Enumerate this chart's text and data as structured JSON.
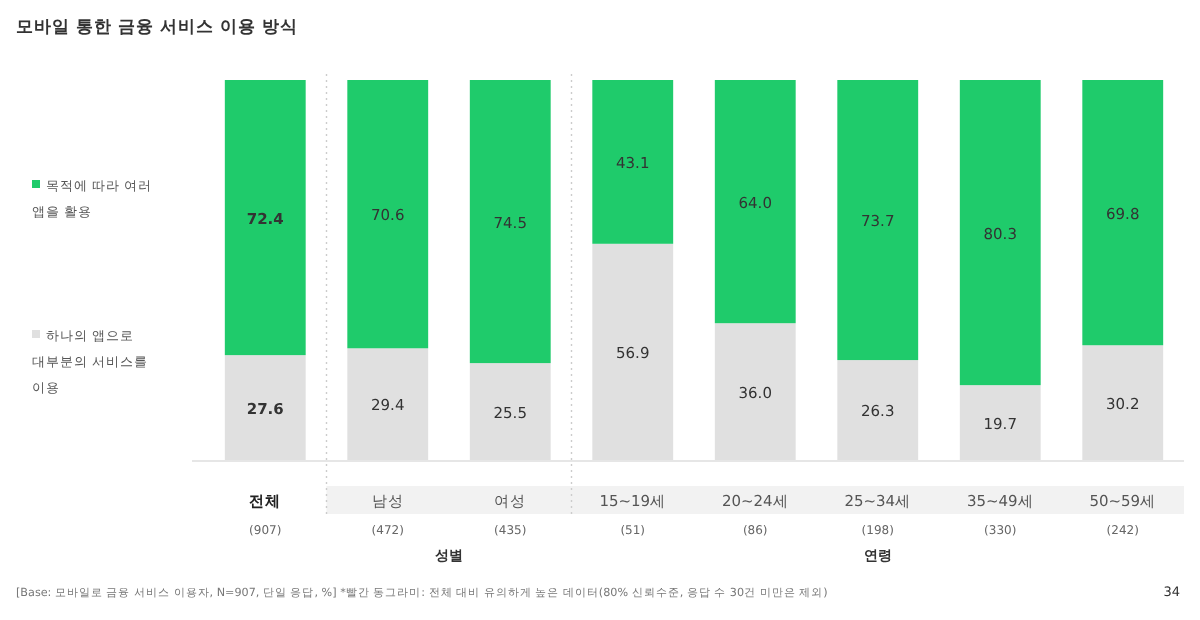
{
  "chart_data": {
    "type": "bar",
    "stacked": true,
    "title": "모바일 통한 금융 서비스 이용 방식",
    "categories": [
      "전체\n(907)",
      "남성\n(472)",
      "여성\n(435)",
      "15~19세\n(51)",
      "20~24세\n(86)",
      "25~34세\n(198)",
      "35~49세\n(330)",
      "50~59세\n(242)"
    ],
    "series": [
      {
        "name": "하나의 앱으로 대부분의 서비스를 이용",
        "color": "#e0e0e0",
        "values": [
          27.6,
          29.4,
          25.5,
          56.9,
          36.0,
          26.3,
          19.7,
          30.2
        ],
        "value_labels": [
          "27.6",
          "29.4",
          "25.5",
          "56.9",
          "36.0",
          "26.3",
          "19.7",
          "30.2"
        ]
      },
      {
        "name": "목적에 따라 여러 앱을 활용",
        "color": "#1fcb6b",
        "values": [
          72.4,
          70.6,
          74.5,
          43.1,
          64.0,
          73.7,
          80.3,
          69.8
        ],
        "value_labels": [
          "72.4",
          "70.6",
          "74.5",
          "43.1",
          "64.0",
          "73.7",
          "80.3",
          "69.8"
        ]
      }
    ],
    "ylim": [
      0,
      100
    ],
    "legend": "left",
    "annotations": [
      "성별",
      "연령",
      "[Base: 모바일로 금융 서비스 이용자, N=907, 단일 응답, %] *빨간 동그라미: 전체 대비 유의하게 높은 데이터(80% 신뢰수준, 응답 수 30건 미만은 제외)",
      "34"
    ]
  }
}
